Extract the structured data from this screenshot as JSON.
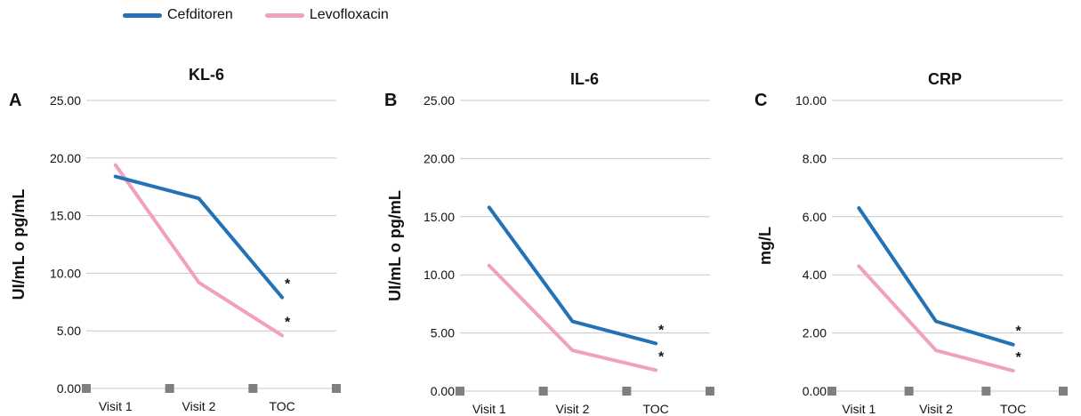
{
  "legend": [
    {
      "name": "Cefditoren",
      "color": "#2372B6"
    },
    {
      "name": "Levofloxacin",
      "color": "#F1A1BE"
    }
  ],
  "marker_color": "#7F7F7F",
  "chart_data": [
    {
      "type": "line",
      "panel_label": "A",
      "title": "KL-6",
      "ylabel": "UI/mL o pg/mL",
      "xlabel": "",
      "categories": [
        "Visit 1",
        "Visit 2",
        "TOC"
      ],
      "ylim": [
        0,
        25
      ],
      "yticks": [
        "0.00",
        "5.00",
        "10.00",
        "15.00",
        "20.00",
        "25.00"
      ],
      "grid": true,
      "series": [
        {
          "name": "Cefditoren",
          "values": [
            18.4,
            16.5,
            7.9
          ],
          "marks": [
            "",
            "",
            "*"
          ]
        },
        {
          "name": "Levofloxacin",
          "values": [
            19.4,
            9.2,
            4.6
          ],
          "marks": [
            "",
            "",
            "*"
          ]
        }
      ]
    },
    {
      "type": "line",
      "panel_label": "B",
      "title": "IL-6",
      "ylabel": "UI/mL o pg/mL",
      "xlabel": "",
      "categories": [
        "Visit 1",
        "Visit 2",
        "TOC"
      ],
      "ylim": [
        0,
        25
      ],
      "yticks": [
        "0.00",
        "5.00",
        "10.00",
        "15.00",
        "20.00",
        "25.00"
      ],
      "grid": true,
      "series": [
        {
          "name": "Cefditoren",
          "values": [
            15.8,
            6.0,
            4.1
          ],
          "marks": [
            "",
            "",
            "*"
          ]
        },
        {
          "name": "Levofloxacin",
          "values": [
            10.8,
            3.5,
            1.8
          ],
          "marks": [
            "",
            "",
            "*"
          ]
        }
      ]
    },
    {
      "type": "line",
      "panel_label": "C",
      "title": "CRP",
      "ylabel": "mg/L",
      "xlabel": "",
      "categories": [
        "Visit 1",
        "Visit 2",
        "TOC"
      ],
      "ylim": [
        0,
        10
      ],
      "yticks": [
        "0.00",
        "2.00",
        "4.00",
        "6.00",
        "8.00",
        "10.00"
      ],
      "grid": true,
      "series": [
        {
          "name": "Cefditoren",
          "values": [
            6.3,
            2.4,
            1.6
          ],
          "marks": [
            "",
            "",
            "*"
          ]
        },
        {
          "name": "Levofloxacin",
          "values": [
            4.3,
            1.4,
            0.7
          ],
          "marks": [
            "",
            "",
            "*"
          ]
        }
      ]
    }
  ]
}
